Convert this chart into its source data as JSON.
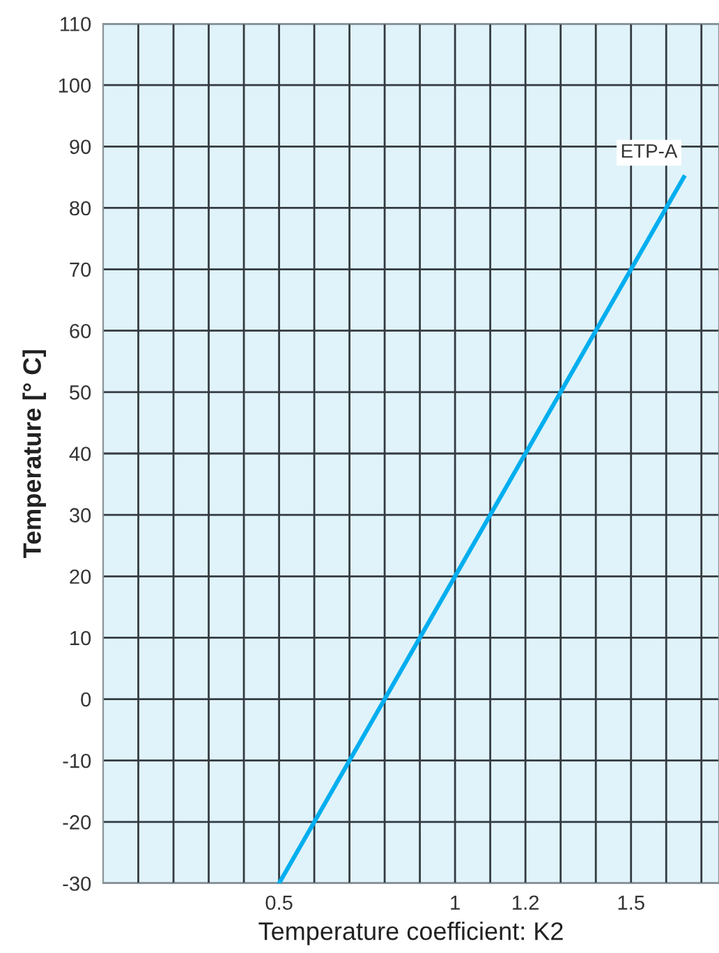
{
  "chart_data": {
    "type": "line",
    "xlabel": "Temperature coefficient: K2",
    "ylabel": "Temperature [° C]",
    "series": [
      {
        "name": "ETP-A",
        "color": "#00aeef",
        "x": [
          0.5,
          1.65
        ],
        "values": [
          -30,
          85
        ]
      }
    ],
    "xlim": [
      0,
      1.75
    ],
    "xticks": [
      {
        "value": 0.1,
        "label": null
      },
      {
        "value": 0.2,
        "label": null
      },
      {
        "value": 0.3,
        "label": null
      },
      {
        "value": 0.4,
        "label": null
      },
      0.5,
      {
        "value": 0.6,
        "label": null
      },
      {
        "value": 0.7,
        "label": null
      },
      {
        "value": 0.8,
        "label": null
      },
      {
        "value": 0.9,
        "label": null
      },
      1,
      {
        "value": 1.1,
        "label": null
      },
      1.2,
      {
        "value": 1.3,
        "label": null
      },
      {
        "value": 1.4,
        "label": null
      },
      1.5,
      {
        "value": 1.6,
        "label": null
      },
      {
        "value": 1.7,
        "label": null
      }
    ],
    "ylim": [
      -30,
      110
    ],
    "yticks": [
      -30,
      -20,
      -10,
      0,
      10,
      20,
      30,
      40,
      50,
      60,
      70,
      80,
      90,
      100,
      110
    ],
    "grid": true,
    "marker": "none",
    "line_style": "solid"
  }
}
